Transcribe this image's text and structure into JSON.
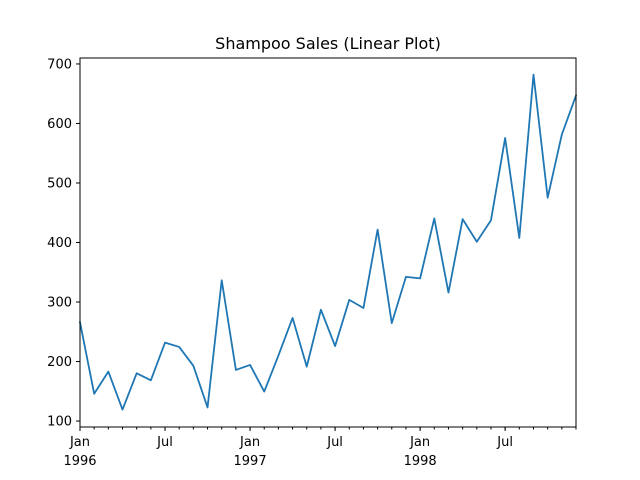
{
  "chart_data": {
    "type": "line",
    "title": "Shampoo Sales (Linear Plot)",
    "xlabel": "",
    "ylabel": "",
    "x": [
      "1996-01",
      "1996-02",
      "1996-03",
      "1996-04",
      "1996-05",
      "1996-06",
      "1996-07",
      "1996-08",
      "1996-09",
      "1996-10",
      "1996-11",
      "1996-12",
      "1997-01",
      "1997-02",
      "1997-03",
      "1997-04",
      "1997-05",
      "1997-06",
      "1997-07",
      "1997-08",
      "1997-09",
      "1997-10",
      "1997-11",
      "1997-12",
      "1998-01",
      "1998-02",
      "1998-03",
      "1998-04",
      "1998-05",
      "1998-06",
      "1998-07",
      "1998-08",
      "1998-09",
      "1998-10",
      "1998-11",
      "1998-12"
    ],
    "series": [
      {
        "color": "#1f77b4",
        "values": [
          266.0,
          145.9,
          183.1,
          119.3,
          180.3,
          168.5,
          231.8,
          224.5,
          192.8,
          122.9,
          336.5,
          185.9,
          194.3,
          149.5,
          210.1,
          273.3,
          191.4,
          287.0,
          226.0,
          303.6,
          289.9,
          421.6,
          264.5,
          342.3,
          339.7,
          440.4,
          315.9,
          439.3,
          401.3,
          437.4,
          575.5,
          407.6,
          682.0,
          475.3,
          581.3,
          646.9
        ]
      }
    ],
    "ylim": [
      90,
      710
    ],
    "y_ticks": [
      100,
      200,
      300,
      400,
      500,
      600,
      700
    ],
    "x_major_ticks": [
      {
        "index": 0,
        "label": "Jan",
        "sublabel": "1996"
      },
      {
        "index": 6,
        "label": "Jul",
        "sublabel": ""
      },
      {
        "index": 12,
        "label": "Jan",
        "sublabel": "1997"
      },
      {
        "index": 18,
        "label": "Jul",
        "sublabel": ""
      },
      {
        "index": 24,
        "label": "Jan",
        "sublabel": "1998"
      },
      {
        "index": 30,
        "label": "Jul",
        "sublabel": ""
      }
    ],
    "grid": false,
    "legend": "none"
  }
}
